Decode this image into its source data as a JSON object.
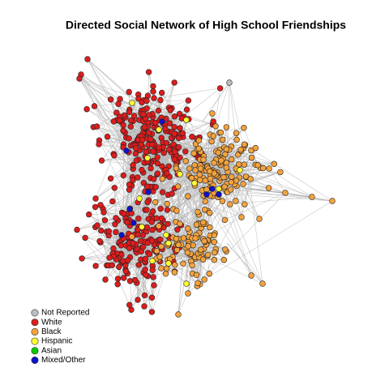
{
  "title": "Directed Social Network of High School Friendships",
  "legend": [
    {
      "label": "Not Reported",
      "color": "#bebebe"
    },
    {
      "label": "White",
      "color": "#dd1c1c"
    },
    {
      "label": "Black",
      "color": "#f4a23c"
    },
    {
      "label": "Hispanic",
      "color": "#ffff33"
    },
    {
      "label": "Asian",
      "color": "#00cc00"
    },
    {
      "label": "Mixed/Other",
      "color": "#1010cc"
    }
  ]
}
